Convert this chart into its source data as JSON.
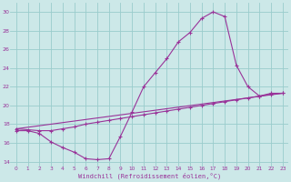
{
  "xlabel": "Windchill (Refroidissement éolien,°C)",
  "bg_color": "#cce8e8",
  "grid_color": "#99cccc",
  "line_color": "#993399",
  "xlim": [
    -0.5,
    23.5
  ],
  "ylim": [
    13.5,
    31
  ],
  "yticks": [
    14,
    16,
    18,
    20,
    22,
    24,
    26,
    28,
    30
  ],
  "xticks": [
    0,
    1,
    2,
    3,
    4,
    5,
    6,
    7,
    8,
    9,
    10,
    11,
    12,
    13,
    14,
    15,
    16,
    17,
    18,
    19,
    20,
    21,
    22,
    23
  ],
  "line1_x": [
    0,
    1,
    2,
    3,
    4,
    5,
    6,
    7,
    8,
    9,
    10,
    11,
    12,
    13,
    14,
    15,
    16,
    17,
    18,
    19,
    20,
    21,
    22,
    23
  ],
  "line1_y": [
    17.3,
    17.3,
    17.0,
    16.1,
    15.5,
    15.0,
    14.3,
    14.2,
    14.3,
    16.7,
    19.3,
    22.0,
    23.5,
    25.0,
    26.8,
    27.8,
    29.3,
    30.0,
    29.5,
    24.3,
    22.0,
    21.0,
    21.3,
    21.3
  ],
  "line2_x": [
    0,
    1,
    2,
    3,
    4,
    5,
    6,
    7,
    8,
    9,
    10,
    11,
    12,
    13,
    14,
    15,
    16,
    17,
    18,
    19,
    20,
    21,
    22,
    23
  ],
  "line2_y": [
    17.5,
    17.4,
    17.3,
    17.3,
    17.5,
    17.7,
    18.0,
    18.2,
    18.4,
    18.6,
    18.8,
    19.0,
    19.2,
    19.4,
    19.6,
    19.8,
    20.0,
    20.2,
    20.4,
    20.6,
    20.8,
    21.0,
    21.2,
    21.3
  ],
  "line3_x": [
    0,
    23
  ],
  "line3_y": [
    17.5,
    21.3
  ]
}
